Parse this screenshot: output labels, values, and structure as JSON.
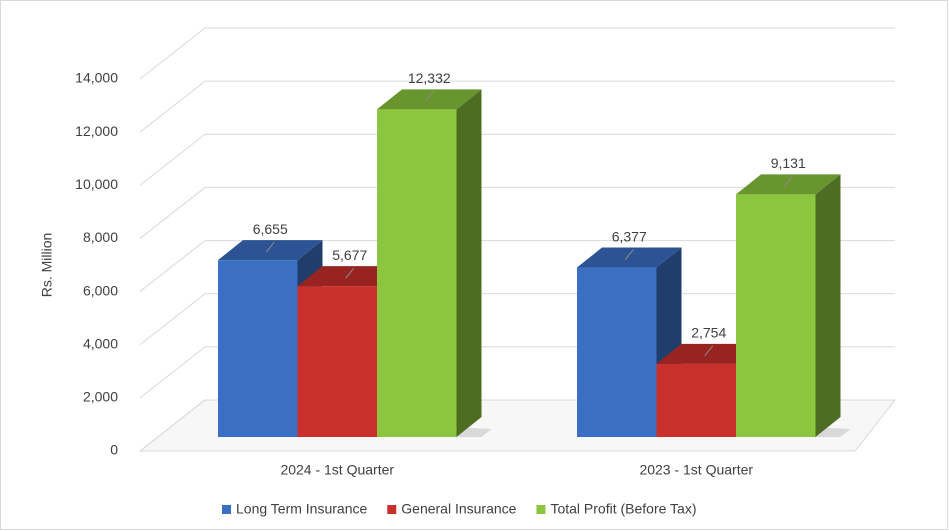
{
  "chart_data": {
    "type": "bar3d",
    "y_axis_label": "Rs. Million",
    "categories": [
      "2024 - 1st  Quarter",
      "2023 - 1st  Quarter"
    ],
    "series": [
      {
        "name": "Long Term Insurance",
        "color": "#3a6fc4",
        "values": [
          6655,
          6377
        ],
        "value_labels": [
          "6,655",
          "6,377"
        ]
      },
      {
        "name": "General Insurance",
        "color": "#c9302c",
        "values": [
          5677,
          2754
        ],
        "value_labels": [
          "5,677",
          "2,754"
        ]
      },
      {
        "name": "Total Profit (Before Tax)",
        "color": "#8cc63f",
        "values": [
          12332,
          9131
        ],
        "value_labels": [
          "12,332",
          "9,131"
        ]
      }
    ],
    "ylim": [
      0,
      14000
    ],
    "yticks": [
      0,
      {
        "value": 2000,
        "label": "2,000"
      },
      {
        "value": 4000,
        "label": "4,000"
      },
      {
        "value": 6000,
        "label": "6,000"
      },
      {
        "value": 8000,
        "label": "8,000"
      },
      {
        "value": 10000,
        "label": "10,000"
      },
      {
        "value": 12000,
        "label": "12,000"
      },
      {
        "value": 14000,
        "label": "14,000"
      }
    ],
    "grid": true
  }
}
